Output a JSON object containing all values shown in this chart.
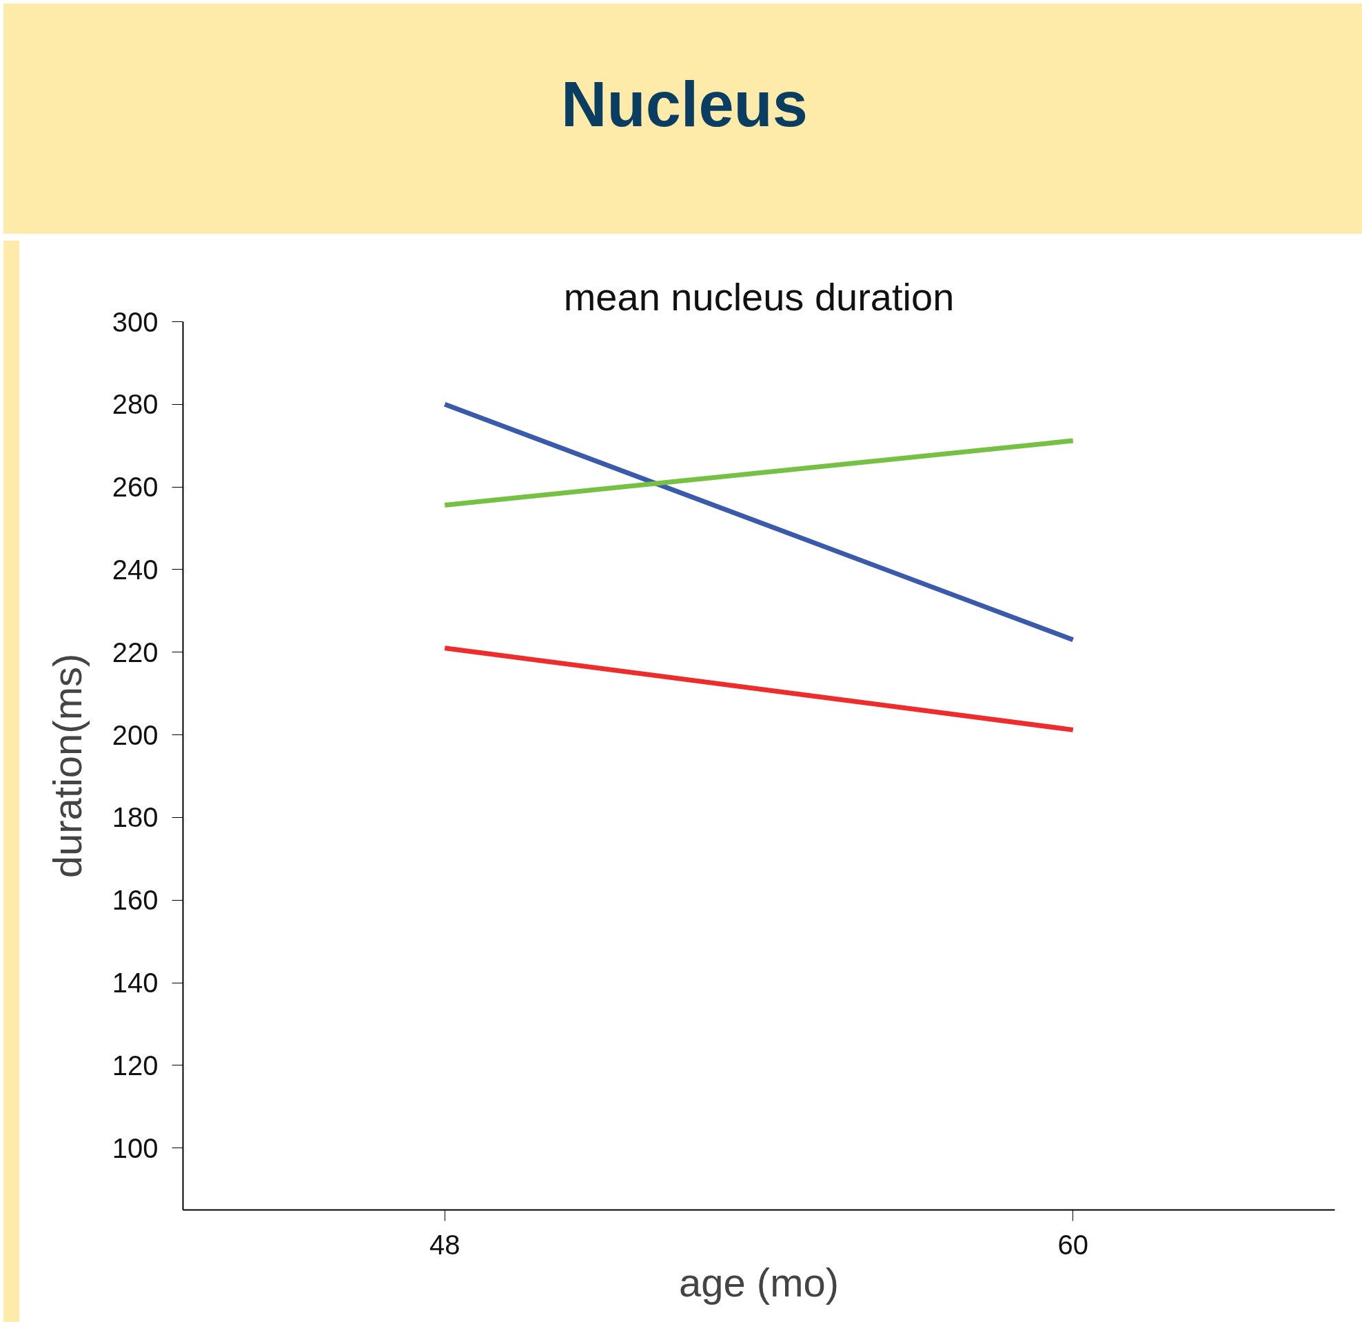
{
  "chart_data": {
    "type": "line",
    "title": "Nucleus",
    "subtitle": "mean nucleus duration",
    "xlabel": "age (mo)",
    "ylabel": "duration(ms)",
    "x": [
      48,
      60
    ],
    "series": [
      {
        "color": "#3a5bab",
        "values": [
          280,
          223
        ]
      },
      {
        "color": "#76c043",
        "values": [
          255.6,
          271.2
        ]
      },
      {
        "color": "#ee2c2c",
        "values": [
          221,
          201.2
        ]
      }
    ],
    "xlim": [
      43,
      65
    ],
    "xticks": [
      48,
      60
    ],
    "ylim": [
      85,
      300
    ],
    "yticks": [
      100,
      120,
      140,
      160,
      180,
      200,
      220,
      240,
      260,
      280,
      300
    ],
    "grid": false,
    "line_style": "solid"
  }
}
